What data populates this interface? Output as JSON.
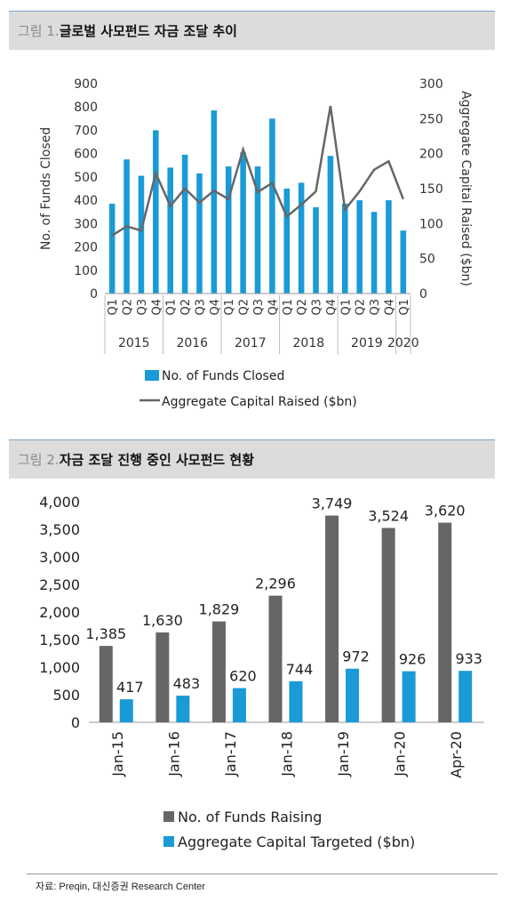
{
  "figure1": {
    "number": "그림 1.",
    "title": "글로벌 사모펀드 자금 조달 추이",
    "chart_data": {
      "type": "bar",
      "categories": [
        "Q1",
        "Q2",
        "Q3",
        "Q4",
        "Q1",
        "Q2",
        "Q3",
        "Q4",
        "Q1",
        "Q2",
        "Q3",
        "Q4",
        "Q1",
        "Q2",
        "Q3",
        "Q4",
        "Q1",
        "Q2",
        "Q3",
        "Q4",
        "Q1"
      ],
      "year_groups": [
        {
          "label": "2015",
          "span": 4
        },
        {
          "label": "2016",
          "span": 4
        },
        {
          "label": "2017",
          "span": 4
        },
        {
          "label": "2018",
          "span": 4
        },
        {
          "label": "2019",
          "span": 4
        },
        {
          "label": "2020",
          "span": 1
        }
      ],
      "series": [
        {
          "name": "No. of Funds Closed",
          "kind": "bar",
          "axis": "left",
          "color": "#1a9ad6",
          "values": [
            385,
            575,
            505,
            700,
            540,
            595,
            515,
            785,
            545,
            605,
            545,
            750,
            450,
            475,
            370,
            590,
            385,
            400,
            350,
            400,
            270
          ]
        },
        {
          "name": "Aggregate Capital Raised ($bn)",
          "kind": "line",
          "axis": "right",
          "color": "#666666",
          "values": [
            83,
            96,
            90,
            172,
            125,
            150,
            130,
            147,
            135,
            206,
            145,
            158,
            110,
            127,
            146,
            268,
            120,
            146,
            177,
            189,
            135
          ]
        }
      ],
      "ylabel": "No. of Funds Closed",
      "ylabel_right": "Aggregate Capital Raised ($bn)",
      "ylim": [
        0,
        900
      ],
      "yticks": [
        0,
        100,
        200,
        300,
        400,
        500,
        600,
        700,
        800,
        900
      ],
      "ylim_right": [
        0,
        300
      ],
      "yticks_right": [
        0,
        50,
        100,
        150,
        200,
        250,
        300
      ],
      "legend": "bottom"
    }
  },
  "figure2": {
    "number": "그림 2.",
    "title": "자금 조달 진행 중인 사모펀드 현황",
    "chart_data": {
      "type": "bar",
      "categories": [
        "Jan-15",
        "Jan-16",
        "Jan-17",
        "Jan-18",
        "Jan-19",
        "Jan-20",
        "Apr-20"
      ],
      "series": [
        {
          "name": "No. of Funds Raising",
          "color": "#666666",
          "values": [
            1385,
            1630,
            1829,
            2296,
            3749,
            3524,
            3620
          ],
          "labels": [
            "1,385",
            "1,630",
            "1,829",
            "2,296",
            "3,749",
            "3,524",
            "3,620"
          ]
        },
        {
          "name": "Aggregate Capital Targeted ($bn)",
          "color": "#1a9ad6",
          "values": [
            417,
            483,
            620,
            744,
            972,
            926,
            933
          ],
          "labels": [
            "417",
            "483",
            "620",
            "744",
            "972",
            "926",
            "933"
          ]
        }
      ],
      "ylim": [
        0,
        4000
      ],
      "yticks": [
        0,
        500,
        1000,
        1500,
        2000,
        2500,
        3000,
        3500,
        4000
      ],
      "ytick_labels": [
        "0",
        "500",
        "1,000",
        "1,500",
        "2,000",
        "2,500",
        "3,000",
        "3,500",
        "4,000"
      ],
      "legend": "bottom"
    }
  },
  "source": "자료: Preqin, 대신증권 Research Center"
}
